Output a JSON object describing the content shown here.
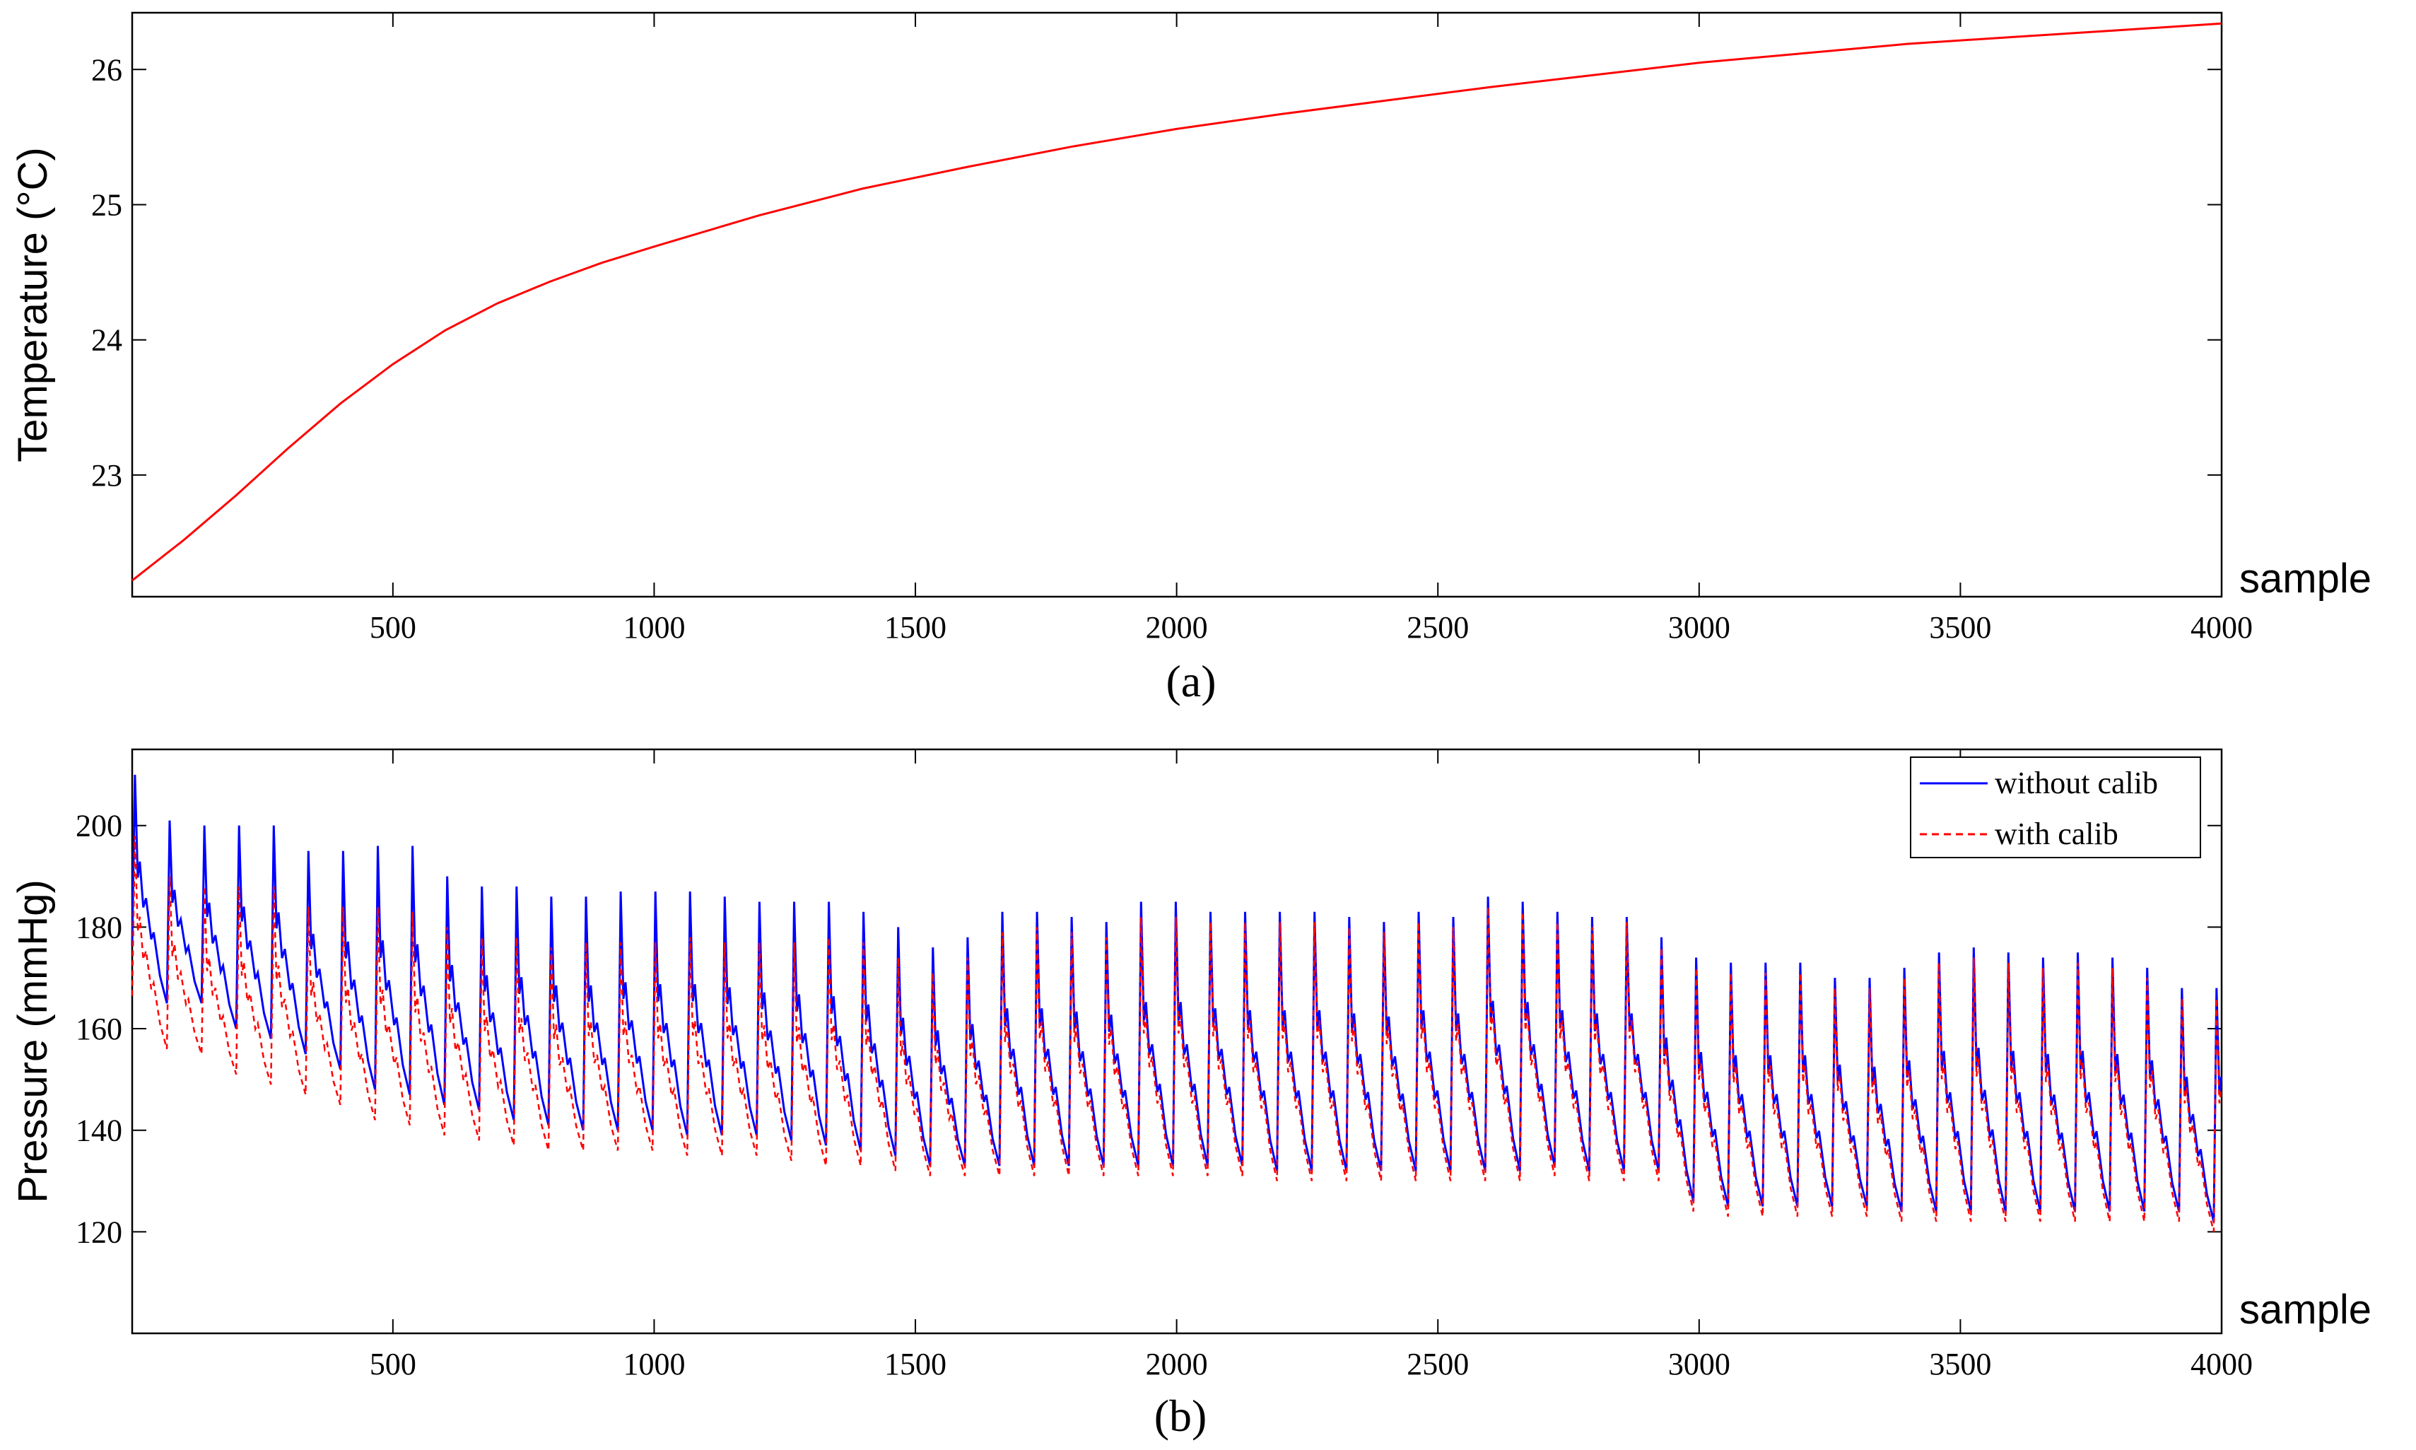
{
  "chart_data": [
    {
      "id": "a",
      "type": "line",
      "caption": "(a)",
      "ylabel": "Temperature (°C)",
      "xlabel": "sample",
      "xlim": [
        1,
        4000
      ],
      "ylim": [
        22.1,
        26.42
      ],
      "xticks": [
        500,
        1000,
        1500,
        2000,
        2500,
        3000,
        3500,
        4000
      ],
      "yticks": [
        23,
        24,
        25,
        26
      ],
      "grid": false,
      "series": [
        {
          "color": "#ff0000",
          "style": "solid",
          "x": [
            1,
            100,
            200,
            300,
            400,
            500,
            600,
            700,
            800,
            900,
            1000,
            1200,
            1400,
            1600,
            1800,
            2000,
            2200,
            2400,
            2600,
            2800,
            3000,
            3200,
            3400,
            3600,
            3800,
            4000
          ],
          "y": [
            22.22,
            22.52,
            22.85,
            23.2,
            23.53,
            23.82,
            24.07,
            24.27,
            24.43,
            24.57,
            24.69,
            24.92,
            25.12,
            25.28,
            25.43,
            25.56,
            25.67,
            25.77,
            25.87,
            25.96,
            26.05,
            26.12,
            26.19,
            26.24,
            26.29,
            26.34
          ]
        }
      ]
    },
    {
      "id": "b",
      "type": "line",
      "caption": "(b)",
      "ylabel": "Pressure (mmHg)",
      "xlabel": "sample",
      "xlim": [
        1,
        4000
      ],
      "ylim": [
        100,
        215
      ],
      "xticks": [
        500,
        1000,
        1500,
        2000,
        2500,
        3000,
        3500,
        4000
      ],
      "yticks": [
        120,
        140,
        160,
        180,
        200
      ],
      "grid": false,
      "legend": {
        "position": "top-right"
      },
      "beats": {
        "start": 1,
        "period": 66.4,
        "count": 61,
        "without_calib_peaks": [
          210,
          201,
          200,
          200,
          200,
          195,
          195,
          196,
          196,
          190,
          188,
          188,
          186,
          186,
          187,
          187,
          187,
          186,
          185,
          185,
          185,
          183,
          180,
          176,
          178,
          183,
          183,
          182,
          181,
          185,
          185,
          183,
          183,
          183,
          183,
          182,
          181,
          183,
          182,
          186,
          185,
          183,
          182,
          182,
          178,
          174,
          173,
          173,
          173,
          170,
          170,
          172,
          175,
          176,
          175,
          174,
          175,
          174,
          172,
          168,
          168
        ],
        "without_calib_troughs": [
          165,
          165,
          160,
          158,
          155,
          152,
          148,
          147,
          145,
          144,
          142,
          141,
          140,
          140,
          140,
          139,
          139,
          139,
          138,
          137,
          136,
          135,
          133,
          133,
          133,
          133,
          133,
          133,
          133,
          133,
          133,
          133,
          132,
          132,
          132,
          132,
          132,
          132,
          132,
          132,
          133,
          132,
          132,
          132,
          126,
          125,
          125,
          125,
          125,
          125,
          124,
          124,
          124,
          124,
          124,
          124,
          124,
          124,
          124,
          122,
          122
        ],
        "with_calib_peaks": [
          198,
          190,
          188,
          188,
          188,
          184,
          184,
          184,
          183,
          180,
          178,
          178,
          176,
          177,
          177,
          177,
          178,
          177,
          177,
          177,
          178,
          177,
          174,
          171,
          174,
          179,
          180,
          179,
          178,
          182,
          182,
          181,
          181,
          181,
          181,
          180,
          179,
          181,
          180,
          184,
          183,
          181,
          180,
          181,
          176,
          172,
          171,
          171,
          171,
          168,
          168,
          170,
          173,
          174,
          173,
          172,
          173,
          172,
          170,
          166,
          166
        ],
        "with_calib_troughs": [
          156,
          155,
          151,
          149,
          147,
          145,
          142,
          141,
          139,
          138,
          137,
          136,
          136,
          136,
          136,
          135,
          135,
          135,
          134,
          133,
          133,
          132,
          131,
          131,
          131,
          131,
          131,
          131,
          131,
          131,
          131,
          131,
          130,
          130,
          130,
          130,
          130,
          130,
          130,
          130,
          131,
          130,
          130,
          130,
          124,
          123,
          123,
          123,
          123,
          123,
          122,
          122,
          122,
          122,
          122,
          122,
          122,
          122,
          122,
          120,
          120
        ]
      },
      "series": [
        {
          "name": "without calib",
          "color": "#0000ff",
          "style": "solid"
        },
        {
          "name": "with calib",
          "color": "#ff0000",
          "style": "dashed"
        }
      ]
    }
  ]
}
